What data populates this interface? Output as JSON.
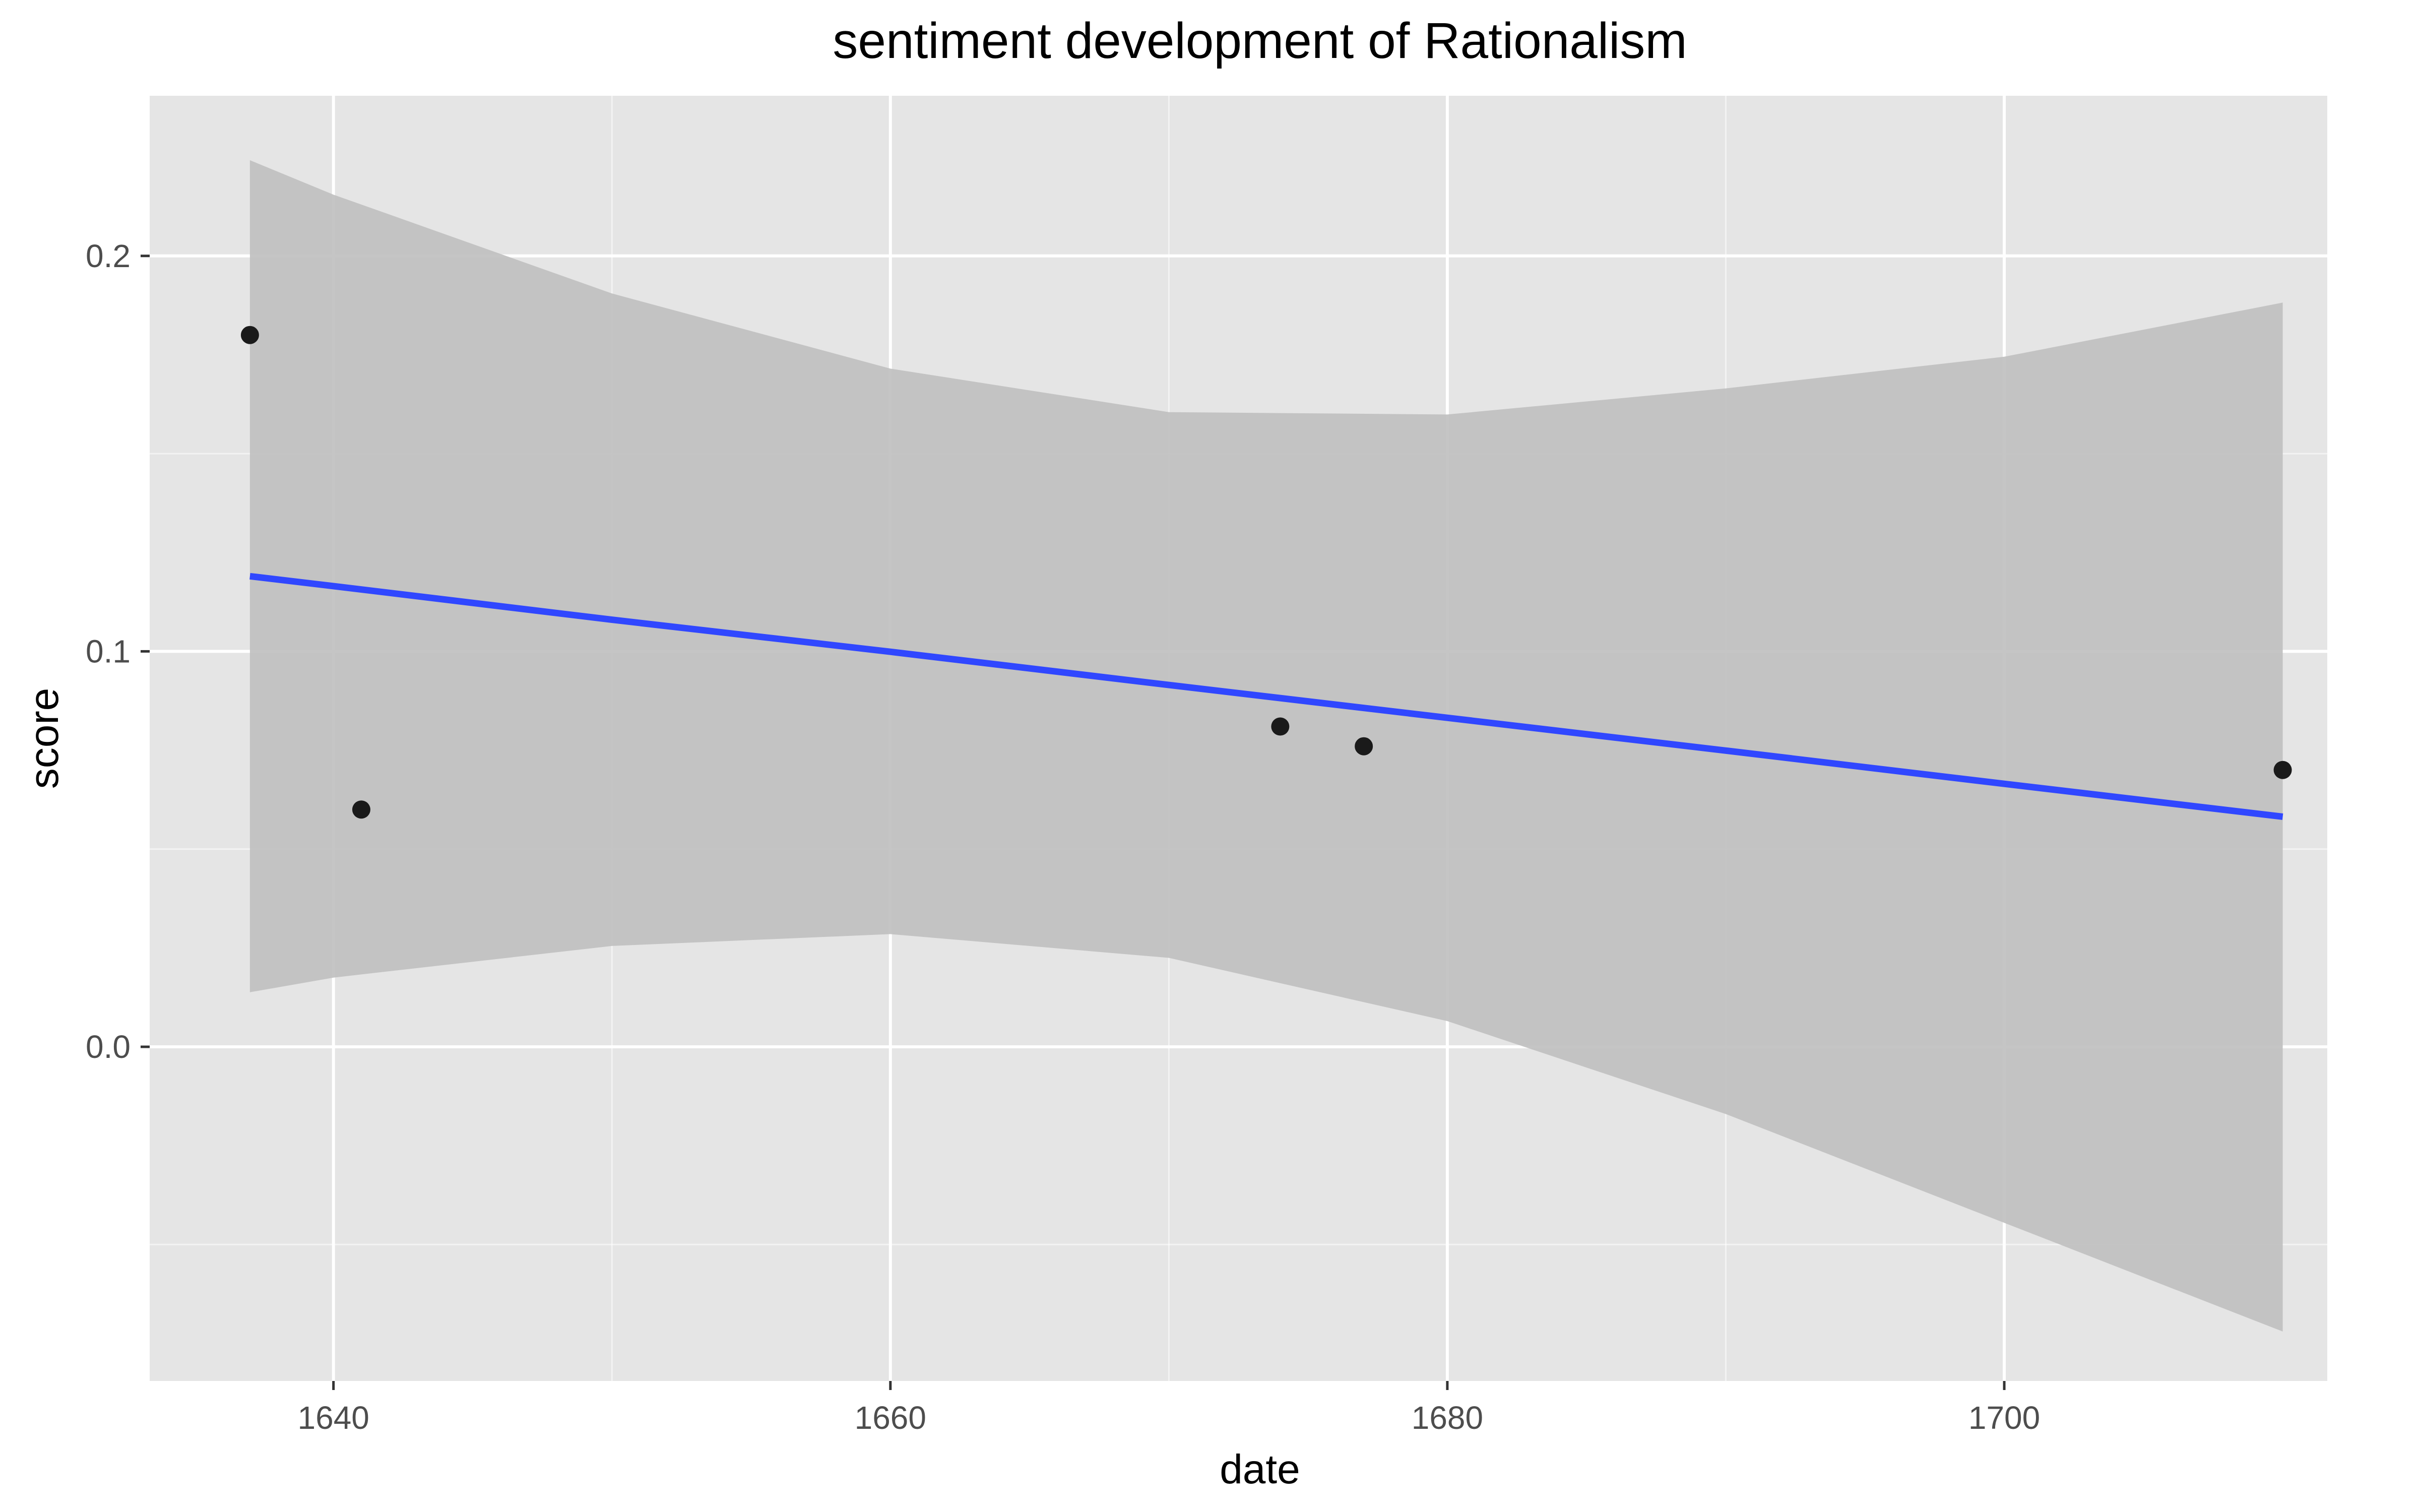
{
  "chart_data": {
    "type": "scatter",
    "title": "sentiment development of Rationalism",
    "xlabel": "date",
    "ylabel": "score",
    "xlim": [
      1633.4,
      1711.6
    ],
    "ylim": [
      -0.0845,
      0.2405
    ],
    "x_ticks": [
      1640,
      1660,
      1680,
      1700
    ],
    "x_tick_labels": [
      "1640",
      "1660",
      "1680",
      "1700"
    ],
    "x_minor": [
      1650,
      1670,
      1690
    ],
    "y_ticks": [
      0.0,
      0.1,
      0.2
    ],
    "y_tick_labels": [
      "0.0",
      "0.1",
      "0.2"
    ],
    "y_minor": [
      -0.05,
      0.05,
      0.15
    ],
    "grid": true,
    "legend": "none",
    "points": {
      "x": [
        1637,
        1641,
        1674,
        1677,
        1710
      ],
      "y": [
        0.18,
        0.06,
        0.081,
        0.076,
        0.07
      ]
    },
    "smooth": {
      "method": "lm",
      "x": [
        1637,
        1640,
        1650,
        1660,
        1670,
        1680,
        1690,
        1700,
        1710
      ],
      "fit": [
        0.119,
        0.1165,
        0.108,
        0.0999,
        0.0915,
        0.0832,
        0.0749,
        0.0665,
        0.0582
      ],
      "lower": [
        0.0138,
        0.0175,
        0.0255,
        0.0285,
        0.0225,
        0.0065,
        -0.017,
        -0.0445,
        -0.072
      ],
      "upper": [
        0.2242,
        0.2155,
        0.1905,
        0.1715,
        0.1605,
        0.1599,
        0.1665,
        0.1745,
        0.1882
      ]
    },
    "colors": {
      "panel": "#e5e5e5",
      "grid_major": "#ffffff",
      "ribbon": "#bfbfbf",
      "line": "#3047ff",
      "point": "#1a1a1a",
      "tick_text": "#4d4d4d"
    }
  }
}
